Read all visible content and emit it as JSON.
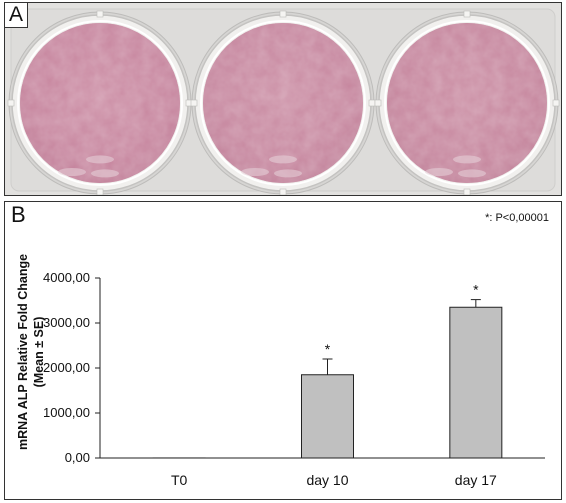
{
  "panel_a": {
    "label": "A",
    "wells": [
      {
        "name": "well-1",
        "color": "#c9879f"
      },
      {
        "name": "well-2",
        "color": "#c88aa0"
      },
      {
        "name": "well-3",
        "color": "#c7899e"
      }
    ]
  },
  "panel_b": {
    "label": "B",
    "significance_note": "*: P<0,00001",
    "significance_marker": "*"
  },
  "chart_data": {
    "type": "bar",
    "title": "",
    "xlabel": "",
    "ylabel": "mRNA ALP Relative Fold Change",
    "ylabel_sub": "(Mean ± SE)",
    "ylim": [
      0,
      4000
    ],
    "yticks": [
      0,
      1000,
      2000,
      3000,
      4000
    ],
    "ytick_labels": [
      "0,00",
      "1000,00",
      "2000,00",
      "3000,00",
      "4000,00"
    ],
    "categories": [
      "T0",
      "day 10",
      "day 17"
    ],
    "values": [
      1,
      1850,
      3350
    ],
    "errors": [
      0,
      350,
      170
    ],
    "significant": [
      false,
      true,
      true
    ],
    "bar_color": "#c0c0c0",
    "grid": false,
    "legend": "none"
  }
}
